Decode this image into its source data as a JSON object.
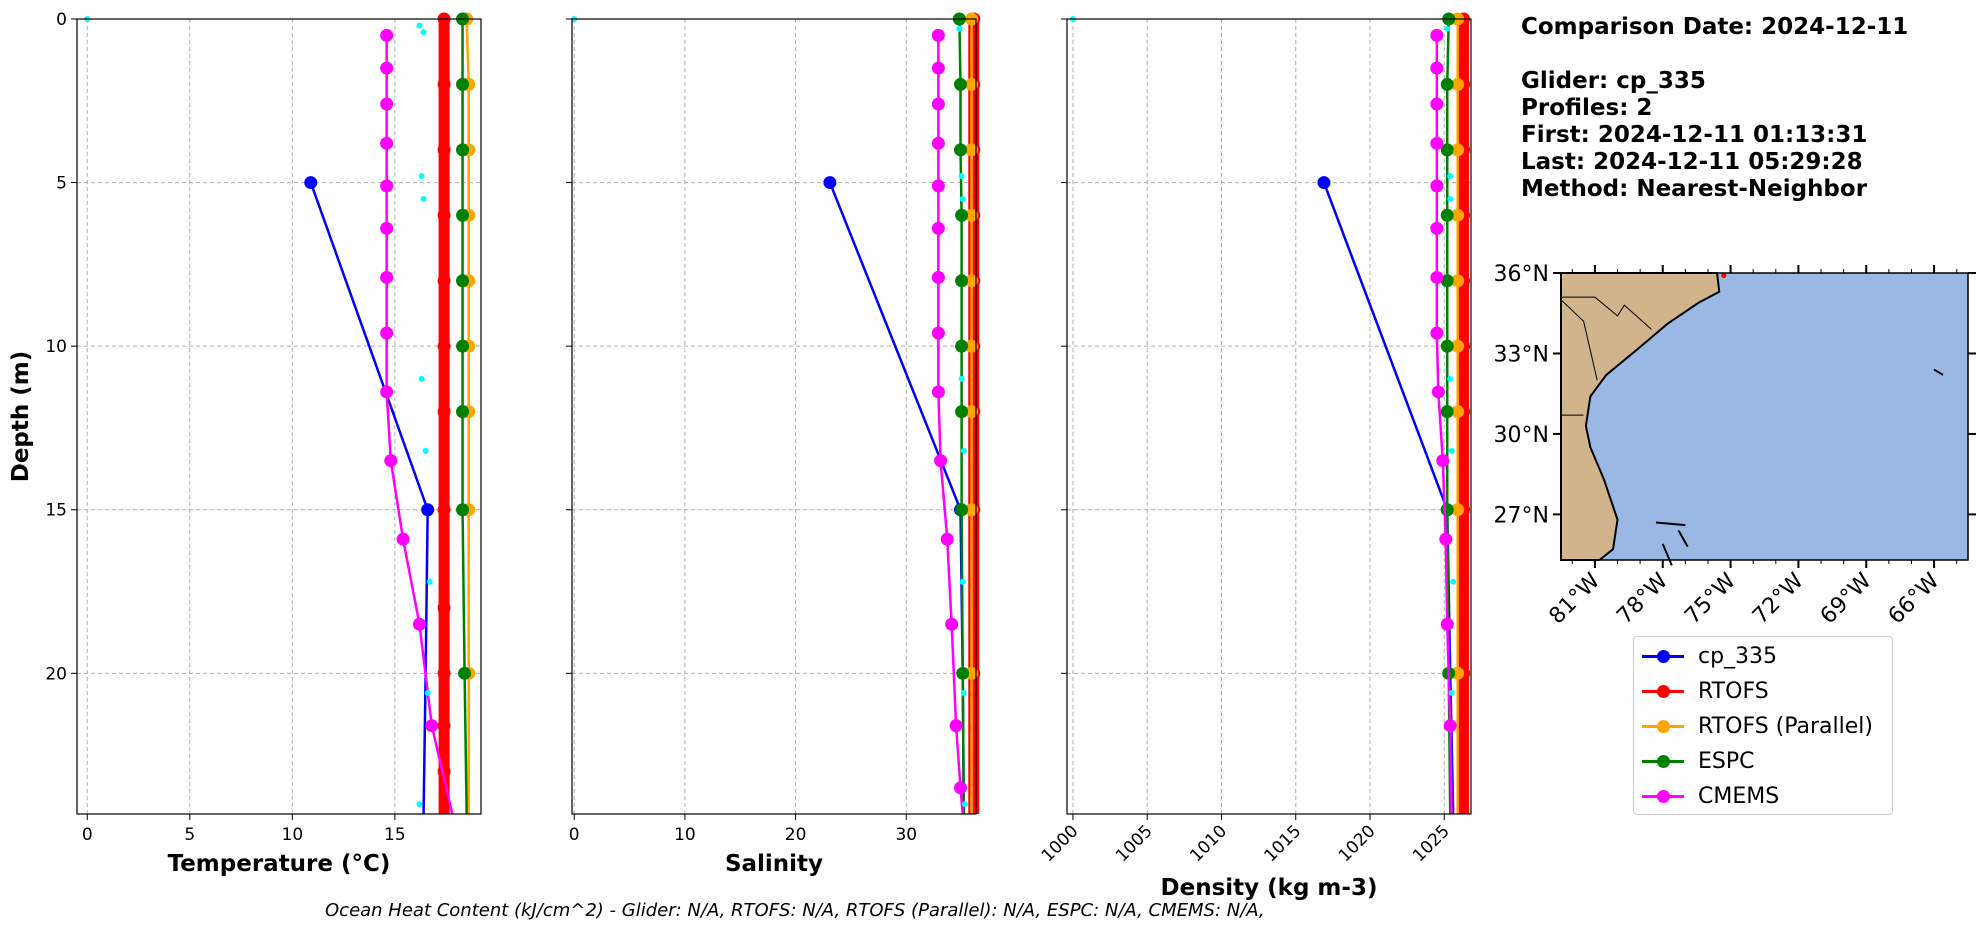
{
  "info": {
    "comparison_date": "Comparison Date: 2024-12-11",
    "glider": "Glider: cp_335",
    "profiles": "Profiles: 2",
    "first": "First: 2024-12-11 01:13:31",
    "last": "Last: 2024-12-11 05:29:28",
    "method": "Method: Nearest-Neighbor"
  },
  "footer": "Ocean Heat Content (kJ/cm^2) - Glider: N/A,  RTOFS: N/A,  RTOFS (Parallel): N/A,  ESPC: N/A,  CMEMS: N/A,",
  "colors": {
    "cp_335": "#0000ff",
    "RTOFS": "#ff0000",
    "RTOFS (Parallel)": "#ffa500",
    "ESPC": "#008000",
    "CMEMS": "#ff00ff",
    "glider_raw": "#00ffff",
    "land": "#d2b48c",
    "ocean": "#9ab8e3"
  },
  "legend": [
    "cp_335",
    "RTOFS",
    "RTOFS (Parallel)",
    "ESPC",
    "CMEMS"
  ],
  "chart_data": [
    {
      "type": "line",
      "xlabel": "Temperature (°C)",
      "ylabel": "Depth (m)",
      "xlim": [
        -0.5,
        19.2
      ],
      "ylim": [
        24.3,
        0
      ],
      "xticks": [
        0,
        5,
        10,
        15
      ],
      "yticks": [
        0,
        5,
        10,
        15,
        20
      ],
      "grid": true,
      "series": [
        {
          "name": "cp_335",
          "markers": true,
          "x": [
            10.9,
            16.6
          ],
          "y": [
            5,
            15
          ]
        },
        {
          "name": "cp_335",
          "markers": false,
          "x": [
            16.6,
            16.5,
            16.4
          ],
          "y": [
            15,
            20,
            24.3
          ]
        },
        {
          "name": "RTOFS",
          "markers": true,
          "thick": true,
          "x": [
            17.4,
            17.4,
            17.4,
            17.4,
            17.4,
            17.4,
            17.4,
            17.4,
            17.4,
            17.4,
            17.4,
            17.4,
            17.4
          ],
          "y": [
            0,
            2,
            4,
            6,
            8,
            10,
            12,
            15,
            18,
            20,
            21.6,
            23,
            24.3
          ]
        },
        {
          "name": "RTOFS (Parallel)",
          "markers": true,
          "x": [
            18.5,
            18.6,
            18.6,
            18.6,
            18.6,
            18.6,
            18.6,
            18.6,
            18.6,
            18.6
          ],
          "y": [
            0,
            2,
            4,
            6,
            8,
            10,
            12,
            15,
            20,
            24.3
          ]
        },
        {
          "name": "ESPC",
          "markers": true,
          "x": [
            18.3,
            18.3,
            18.3,
            18.3,
            18.3,
            18.3,
            18.3,
            18.3,
            18.4,
            18.5
          ],
          "y": [
            0,
            2,
            4,
            6,
            8,
            10,
            12,
            15,
            20,
            24.3
          ]
        },
        {
          "name": "CMEMS",
          "markers": true,
          "x": [
            14.6,
            14.6,
            14.6,
            14.6,
            14.6,
            14.6,
            14.6,
            14.6,
            14.6,
            14.8,
            15.4,
            16.2,
            16.8,
            17.8
          ],
          "y": [
            0.5,
            1.5,
            2.6,
            3.8,
            5.1,
            6.4,
            7.9,
            9.6,
            11.4,
            13.5,
            15.9,
            18.5,
            21.6,
            24.3
          ]
        },
        {
          "name": "glider_raw",
          "dots": true,
          "x": [
            0,
            16.2,
            16.4,
            16.3,
            16.4,
            16.3,
            16.5,
            16.7,
            16.6,
            16.2
          ],
          "y": [
            0,
            0.2,
            0.4,
            4.8,
            5.5,
            11.0,
            13.2,
            17.2,
            20.6,
            24.0
          ]
        }
      ]
    },
    {
      "type": "line",
      "xlabel": "Salinity",
      "ylabel": "",
      "xlim": [
        -0.2,
        36.3
      ],
      "ylim": [
        24.3,
        0
      ],
      "xticks": [
        0,
        10,
        20,
        30
      ],
      "yticks": [
        0,
        5,
        10,
        15,
        20
      ],
      "grid": true,
      "series": [
        {
          "name": "cp_335",
          "markers": true,
          "x": [
            23.1,
            34.9
          ],
          "y": [
            5,
            15
          ]
        },
        {
          "name": "cp_335",
          "markers": false,
          "x": [
            34.9,
            35.1,
            35.2
          ],
          "y": [
            15,
            20,
            24.3
          ]
        },
        {
          "name": "RTOFS",
          "markers": true,
          "thick": true,
          "x": [
            36.1,
            36.1,
            36.1,
            36.1,
            36.1,
            36.1,
            36.1,
            36.1,
            36.1,
            36.1
          ],
          "y": [
            0,
            2,
            4,
            6,
            8,
            10,
            12,
            15,
            20,
            24.3
          ]
        },
        {
          "name": "RTOFS (Parallel)",
          "markers": true,
          "x": [
            35.9,
            35.9,
            35.9,
            35.9,
            35.9,
            35.9,
            35.9,
            35.9,
            35.9,
            35.9
          ],
          "y": [
            0,
            2,
            4,
            6,
            8,
            10,
            12,
            15,
            20,
            24.3
          ]
        },
        {
          "name": "ESPC",
          "markers": true,
          "x": [
            34.8,
            34.9,
            34.9,
            35.0,
            35.0,
            35.0,
            35.0,
            35.0,
            35.1,
            35.2
          ],
          "y": [
            0,
            2,
            4,
            6,
            8,
            10,
            12,
            15,
            20,
            24.3
          ]
        },
        {
          "name": "CMEMS",
          "markers": true,
          "x": [
            32.9,
            32.9,
            32.9,
            32.9,
            32.9,
            32.9,
            32.9,
            32.9,
            32.9,
            33.1,
            33.7,
            34.1,
            34.5,
            34.9,
            35.1
          ],
          "y": [
            0.5,
            1.5,
            2.6,
            3.8,
            5.1,
            6.4,
            7.9,
            9.6,
            11.4,
            13.5,
            15.9,
            18.5,
            21.6,
            23.5,
            24.3
          ]
        },
        {
          "name": "glider_raw",
          "dots": true,
          "x": [
            0,
            34.8,
            35.0,
            35.1,
            35.0,
            35.2,
            35.1,
            35.2,
            35.3
          ],
          "y": [
            0,
            0.3,
            4.8,
            5.5,
            11.0,
            13.2,
            17.2,
            20.6,
            24.0
          ]
        }
      ]
    },
    {
      "type": "line",
      "xlabel": "Density (kg m-3)",
      "ylabel": "",
      "xlim": [
        999.6,
        1026.8
      ],
      "ylim": [
        24.3,
        0
      ],
      "xticks": [
        1000,
        1005,
        1010,
        1015,
        1020,
        1025
      ],
      "yticks": [
        0,
        5,
        10,
        15,
        20
      ],
      "grid": true,
      "series": [
        {
          "name": "cp_335",
          "markers": true,
          "x": [
            1016.9,
            1025.2
          ],
          "y": [
            5,
            15
          ]
        },
        {
          "name": "cp_335",
          "markers": false,
          "x": [
            1025.2,
            1025.4,
            1025.6
          ],
          "y": [
            15,
            20,
            24.3
          ]
        },
        {
          "name": "RTOFS",
          "markers": true,
          "thick": true,
          "x": [
            1026.3,
            1026.3,
            1026.3,
            1026.3,
            1026.3,
            1026.3,
            1026.3,
            1026.3,
            1026.3,
            1026.3
          ],
          "y": [
            0,
            2,
            4,
            6,
            8,
            10,
            12,
            15,
            20,
            24.3
          ]
        },
        {
          "name": "RTOFS (Parallel)",
          "markers": true,
          "x": [
            1025.9,
            1025.9,
            1025.9,
            1025.9,
            1025.9,
            1025.9,
            1025.9,
            1025.9,
            1025.9,
            1025.9
          ],
          "y": [
            0,
            2,
            4,
            6,
            8,
            10,
            12,
            15,
            20,
            24.3
          ]
        },
        {
          "name": "ESPC",
          "markers": true,
          "x": [
            1025.3,
            1025.2,
            1025.2,
            1025.2,
            1025.2,
            1025.2,
            1025.2,
            1025.2,
            1025.3,
            1025.4
          ],
          "y": [
            0,
            2,
            4,
            6,
            8,
            10,
            12,
            15,
            20,
            24.3
          ]
        },
        {
          "name": "CMEMS",
          "markers": true,
          "x": [
            1024.5,
            1024.5,
            1024.5,
            1024.5,
            1024.5,
            1024.5,
            1024.5,
            1024.5,
            1024.6,
            1024.9,
            1025.1,
            1025.2,
            1025.4,
            1025.5
          ],
          "y": [
            0.5,
            1.5,
            2.6,
            3.8,
            5.1,
            6.4,
            7.9,
            9.6,
            11.4,
            13.5,
            15.9,
            18.5,
            21.6,
            24.3
          ]
        },
        {
          "name": "glider_raw",
          "dots": true,
          "x": [
            1000,
            1025.2,
            1025.4,
            1025.4,
            1025.4,
            1025.5,
            1025.6,
            1025.5
          ],
          "y": [
            0,
            0.3,
            4.8,
            5.5,
            11.0,
            13.2,
            17.2,
            20.6
          ]
        }
      ]
    }
  ],
  "map": {
    "lat_ticks": [
      "36°N",
      "33°N",
      "30°N",
      "27°N"
    ],
    "lon_ticks": [
      "81°W",
      "78°W",
      "75°W",
      "72°W",
      "69°W",
      "66°W"
    ]
  }
}
